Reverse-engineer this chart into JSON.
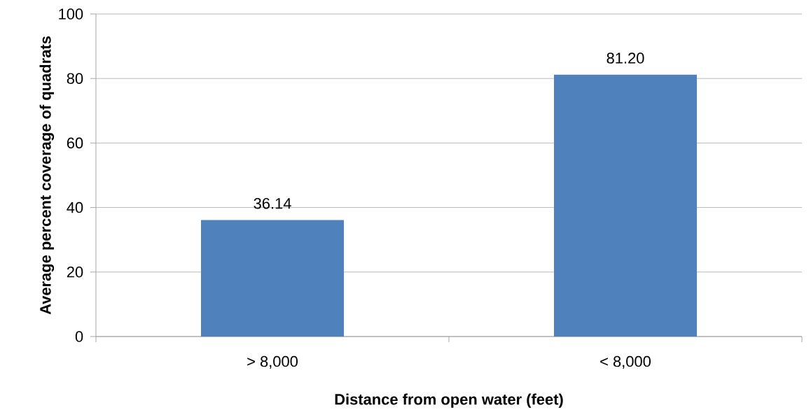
{
  "chart_data": {
    "type": "bar",
    "xlabel": "Distance from open water (feet)",
    "ylabel": "Average percent coverage of quadrats",
    "categories": [
      "> 8,000",
      "< 8,000"
    ],
    "values": [
      36.14,
      81.2
    ],
    "value_labels": [
      "36.14",
      "81.20"
    ],
    "color": "#4f81bd",
    "ylim": [
      0,
      100
    ],
    "yticks": [
      0,
      20,
      40,
      60,
      80,
      100
    ],
    "grid": "y"
  }
}
